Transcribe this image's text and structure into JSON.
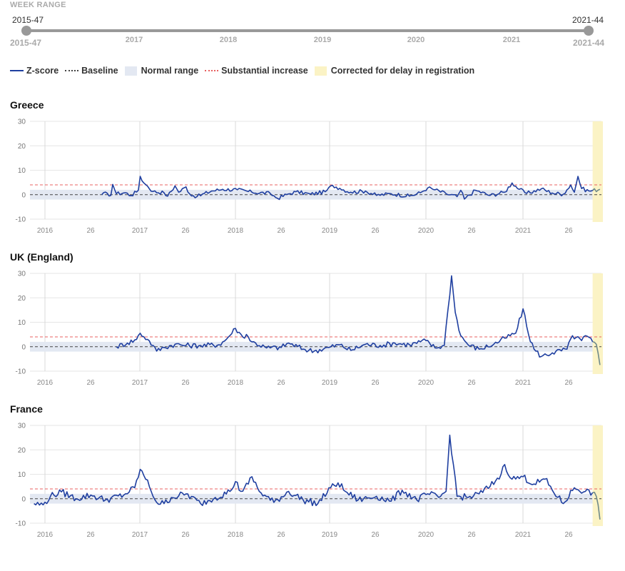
{
  "week_range": {
    "title": "WEEK RANGE",
    "start_value": "2015-47",
    "end_value": "2021-44",
    "start_label": "2015-47",
    "end_label": "2021-44",
    "ticks": [
      {
        "label": "2017"
      },
      {
        "label": "2018"
      },
      {
        "label": "2019"
      },
      {
        "label": "2020"
      },
      {
        "label": "2021"
      }
    ]
  },
  "legend": [
    {
      "label": "Z-score",
      "kind": "line",
      "color": "#1f3fa0",
      "dash": ""
    },
    {
      "label": "Baseline",
      "kind": "line",
      "color": "#444444",
      "dash": "3,3"
    },
    {
      "label": "Normal range",
      "kind": "box",
      "color": "#e3e8f2"
    },
    {
      "label": "Substantial increase",
      "kind": "line",
      "color": "#e86060",
      "dash": "3,3"
    },
    {
      "label": "Corrected for delay in registration",
      "kind": "box",
      "color": "#fbf3c5"
    }
  ],
  "colors": {
    "zscore": "#1f3fa0",
    "baseline": "#444444",
    "normal_range": "#e3e8f2",
    "substantial": "#e86060",
    "delay": "#fbf3c5",
    "delay_line": "#6f8a8a",
    "grid": "#e6e6e6",
    "year_grid": "#d8d8d8"
  },
  "chart_data": [
    {
      "type": "line",
      "title": "Greece",
      "ylim": [
        -10,
        30
      ],
      "yticks": [
        -10,
        0,
        10,
        20,
        30
      ],
      "x_tick_labels": [
        "2016",
        "26",
        "2017",
        "26",
        "2018",
        "26",
        "2019",
        "26",
        "2020",
        "26",
        "2021",
        "26"
      ],
      "baseline": 0,
      "normal_range": [
        -2,
        2
      ],
      "substantial_increase": 4,
      "start_week": "2016-32",
      "series": [
        {
          "name": "Z-score",
          "peaks": [
            {
              "week": "2016-32",
              "z": 0
            },
            {
              "week": "2016-35",
              "z": 0.6
            },
            {
              "week": "2016-37",
              "z": -0.3
            },
            {
              "week": "2016-38",
              "z": 4.2
            },
            {
              "week": "2016-40",
              "z": 0.4
            },
            {
              "week": "2016-45",
              "z": 0.8
            },
            {
              "week": "2016-48",
              "z": -0.4
            },
            {
              "week": "2016-52",
              "z": 1.8
            },
            {
              "week": "2017-01",
              "z": 7.5
            },
            {
              "week": "2017-03",
              "z": 4.8
            },
            {
              "week": "2017-05",
              "z": 3.5
            },
            {
              "week": "2017-08",
              "z": 1.3
            },
            {
              "week": "2017-14",
              "z": 0.8
            },
            {
              "week": "2017-16",
              "z": -0.6
            },
            {
              "week": "2017-20",
              "z": 3.6
            },
            {
              "week": "2017-22",
              "z": 1.0
            },
            {
              "week": "2017-26",
              "z": 3.2
            },
            {
              "week": "2017-28",
              "z": 0.3
            },
            {
              "week": "2017-32",
              "z": -0.8
            },
            {
              "week": "2017-40",
              "z": 1.5
            },
            {
              "week": "2017-46",
              "z": 2.2
            },
            {
              "week": "2018-02",
              "z": 2.0
            },
            {
              "week": "2018-10",
              "z": 1.0
            },
            {
              "week": "2018-20",
              "z": 0.5
            },
            {
              "week": "2018-24",
              "z": -1.5
            },
            {
              "week": "2018-30",
              "z": 0.3
            },
            {
              "week": "2018-34",
              "z": 1.2
            },
            {
              "week": "2018-42",
              "z": 0.2
            },
            {
              "week": "2018-50",
              "z": 1.2
            },
            {
              "week": "2019-02",
              "z": 3.8
            },
            {
              "week": "2019-06",
              "z": 2.6
            },
            {
              "week": "2019-12",
              "z": 1.0
            },
            {
              "week": "2019-20",
              "z": 1.5
            },
            {
              "week": "2019-26",
              "z": -0.3
            },
            {
              "week": "2019-34",
              "z": 0.4
            },
            {
              "week": "2019-44",
              "z": -0.6
            },
            {
              "week": "2019-50",
              "z": 0.8
            },
            {
              "week": "2020-02",
              "z": 2.8
            },
            {
              "week": "2020-06",
              "z": 2.0
            },
            {
              "week": "2020-12",
              "z": 0.4
            },
            {
              "week": "2020-18",
              "z": -0.8
            },
            {
              "week": "2020-20",
              "z": 1.8
            },
            {
              "week": "2020-22",
              "z": -1.8
            },
            {
              "week": "2020-28",
              "z": 1.8
            },
            {
              "week": "2020-36",
              "z": -0.3
            },
            {
              "week": "2020-44",
              "z": 1.0
            },
            {
              "week": "2020-48",
              "z": 4.8
            },
            {
              "week": "2020-52",
              "z": 2.2
            },
            {
              "week": "2021-04",
              "z": 0.5
            },
            {
              "week": "2021-12",
              "z": 2.4
            },
            {
              "week": "2021-18",
              "z": 0.7
            },
            {
              "week": "2021-24",
              "z": 0.2
            },
            {
              "week": "2021-28",
              "z": 4.0
            },
            {
              "week": "2021-30",
              "z": 1.0
            },
            {
              "week": "2021-32",
              "z": 7.5
            },
            {
              "week": "2021-34",
              "z": 2.5
            },
            {
              "week": "2021-38",
              "z": 1.5
            },
            {
              "week": "2021-44",
              "z": 2.2
            }
          ]
        }
      ]
    },
    {
      "type": "line",
      "title": "UK (England)",
      "ylim": [
        -10,
        30
      ],
      "yticks": [
        -10,
        0,
        10,
        20,
        30
      ],
      "x_tick_labels": [
        "2016",
        "26",
        "2017",
        "26",
        "2018",
        "26",
        "2019",
        "26",
        "2020",
        "26",
        "2021",
        "26"
      ],
      "baseline": 0,
      "normal_range": [
        -2,
        2
      ],
      "substantial_increase": 4,
      "start_week": "2016-40",
      "series": [
        {
          "name": "Z-score",
          "peaks": [
            {
              "week": "2016-40",
              "z": 0
            },
            {
              "week": "2016-46",
              "z": 1.5
            },
            {
              "week": "2016-51",
              "z": 3.0
            },
            {
              "week": "2017-01",
              "z": 5.5
            },
            {
              "week": "2017-05",
              "z": 3.0
            },
            {
              "week": "2017-08",
              "z": 0.5
            },
            {
              "week": "2017-10",
              "z": -1.8
            },
            {
              "week": "2017-14",
              "z": -0.3
            },
            {
              "week": "2017-20",
              "z": 1.0
            },
            {
              "week": "2017-26",
              "z": 0.5
            },
            {
              "week": "2017-34",
              "z": 0.5
            },
            {
              "week": "2017-44",
              "z": 0.8
            },
            {
              "week": "2017-48",
              "z": 3.0
            },
            {
              "week": "2018-01",
              "z": 7.5
            },
            {
              "week": "2018-05",
              "z": 4.0
            },
            {
              "week": "2018-07",
              "z": 5.0
            },
            {
              "week": "2018-10",
              "z": 2.0
            },
            {
              "week": "2018-18",
              "z": -0.5
            },
            {
              "week": "2018-26",
              "z": -0.3
            },
            {
              "week": "2018-30",
              "z": 1.5
            },
            {
              "week": "2018-38",
              "z": -1.0
            },
            {
              "week": "2018-44",
              "z": -1.8
            },
            {
              "week": "2018-52",
              "z": -0.3
            },
            {
              "week": "2019-06",
              "z": 0.8
            },
            {
              "week": "2019-12",
              "z": -1.5
            },
            {
              "week": "2019-20",
              "z": 1.0
            },
            {
              "week": "2019-28",
              "z": 0.5
            },
            {
              "week": "2019-36",
              "z": 1.5
            },
            {
              "week": "2019-44",
              "z": 0.8
            },
            {
              "week": "2020-01",
              "z": 2.5
            },
            {
              "week": "2020-06",
              "z": -0.5
            },
            {
              "week": "2020-11",
              "z": 0.5
            },
            {
              "week": "2020-13",
              "z": 15.0
            },
            {
              "week": "2020-15",
              "z": 29.0
            },
            {
              "week": "2020-17",
              "z": 14.0
            },
            {
              "week": "2020-20",
              "z": 4.5
            },
            {
              "week": "2020-24",
              "z": 0.8
            },
            {
              "week": "2020-30",
              "z": -1.0
            },
            {
              "week": "2020-38",
              "z": 1.0
            },
            {
              "week": "2020-44",
              "z": 3.5
            },
            {
              "week": "2020-50",
              "z": 5.5
            },
            {
              "week": "2021-02",
              "z": 15.5
            },
            {
              "week": "2021-05",
              "z": 5.0
            },
            {
              "week": "2021-08",
              "z": -1.0
            },
            {
              "week": "2021-12",
              "z": -4.0
            },
            {
              "week": "2021-18",
              "z": -2.5
            },
            {
              "week": "2021-26",
              "z": -1.0
            },
            {
              "week": "2021-29",
              "z": 4.5
            },
            {
              "week": "2021-34",
              "z": 2.5
            },
            {
              "week": "2021-36",
              "z": 4.5
            },
            {
              "week": "2021-40",
              "z": 2.0
            },
            {
              "week": "2021-42",
              "z": 1.0
            },
            {
              "week": "2021-44",
              "z": -7.5
            }
          ]
        }
      ]
    },
    {
      "type": "line",
      "title": "France",
      "ylim": [
        -10,
        30
      ],
      "yticks": [
        -10,
        0,
        10,
        20,
        30
      ],
      "x_tick_labels": [
        "2016",
        "26",
        "2017",
        "26",
        "2018",
        "26",
        "2019",
        "26",
        "2020",
        "26",
        "2021",
        "26"
      ],
      "baseline": 0,
      "normal_range": [
        -2,
        2
      ],
      "substantial_increase": 4,
      "start_week": "2015-47",
      "series": [
        {
          "name": "Z-score",
          "peaks": [
            {
              "week": "2015-47",
              "z": -2.0
            },
            {
              "week": "2015-52",
              "z": -2.5
            },
            {
              "week": "2016-04",
              "z": 1.0
            },
            {
              "week": "2016-10",
              "z": 2.8
            },
            {
              "week": "2016-18",
              "z": 0
            },
            {
              "week": "2016-26",
              "z": 1.5
            },
            {
              "week": "2016-34",
              "z": -0.5
            },
            {
              "week": "2016-44",
              "z": 1.5
            },
            {
              "week": "2016-50",
              "z": 4.5
            },
            {
              "week": "2017-01",
              "z": 12.0
            },
            {
              "week": "2017-03",
              "z": 9.5
            },
            {
              "week": "2017-06",
              "z": 5.0
            },
            {
              "week": "2017-10",
              "z": -1.5
            },
            {
              "week": "2017-14",
              "z": -2.0
            },
            {
              "week": "2017-18",
              "z": 0.5
            },
            {
              "week": "2017-26",
              "z": 2.0
            },
            {
              "week": "2017-34",
              "z": -2.0
            },
            {
              "week": "2017-42",
              "z": 0.5
            },
            {
              "week": "2017-50",
              "z": 3.0
            },
            {
              "week": "2018-01",
              "z": 7.0
            },
            {
              "week": "2018-04",
              "z": 3.0
            },
            {
              "week": "2018-08",
              "z": 6.0
            },
            {
              "week": "2018-10",
              "z": 9.0
            },
            {
              "week": "2018-14",
              "z": 3.0
            },
            {
              "week": "2018-22",
              "z": -1.5
            },
            {
              "week": "2018-30",
              "z": 3.0
            },
            {
              "week": "2018-38",
              "z": -0.5
            },
            {
              "week": "2018-46",
              "z": -2.0
            },
            {
              "week": "2019-01",
              "z": 4.5
            },
            {
              "week": "2019-05",
              "z": 6.5
            },
            {
              "week": "2019-09",
              "z": 3.0
            },
            {
              "week": "2019-16",
              "z": -0.5
            },
            {
              "week": "2019-26",
              "z": 1.0
            },
            {
              "week": "2019-34",
              "z": -1.0
            },
            {
              "week": "2019-40",
              "z": 3.5
            },
            {
              "week": "2019-48",
              "z": -0.5
            },
            {
              "week": "2020-02",
              "z": 2.0
            },
            {
              "week": "2020-08",
              "z": 0.5
            },
            {
              "week": "2020-12",
              "z": 3.0
            },
            {
              "week": "2020-14",
              "z": 26.0
            },
            {
              "week": "2020-16",
              "z": 14.0
            },
            {
              "week": "2020-18",
              "z": 1.0
            },
            {
              "week": "2020-24",
              "z": 0.5
            },
            {
              "week": "2020-30",
              "z": 2.0
            },
            {
              "week": "2020-36",
              "z": 5.0
            },
            {
              "week": "2020-42",
              "z": 10.0
            },
            {
              "week": "2020-44",
              "z": 14.0
            },
            {
              "week": "2020-48",
              "z": 8.0
            },
            {
              "week": "2021-02",
              "z": 9.0
            },
            {
              "week": "2021-08",
              "z": 6.0
            },
            {
              "week": "2021-14",
              "z": 8.0
            },
            {
              "week": "2021-18",
              "z": 3.5
            },
            {
              "week": "2021-24",
              "z": -2.0
            },
            {
              "week": "2021-30",
              "z": 4.5
            },
            {
              "week": "2021-36",
              "z": 3.0
            },
            {
              "week": "2021-40",
              "z": 2.5
            },
            {
              "week": "2021-42",
              "z": 1.0
            },
            {
              "week": "2021-44",
              "z": -8.5
            }
          ]
        }
      ]
    }
  ]
}
